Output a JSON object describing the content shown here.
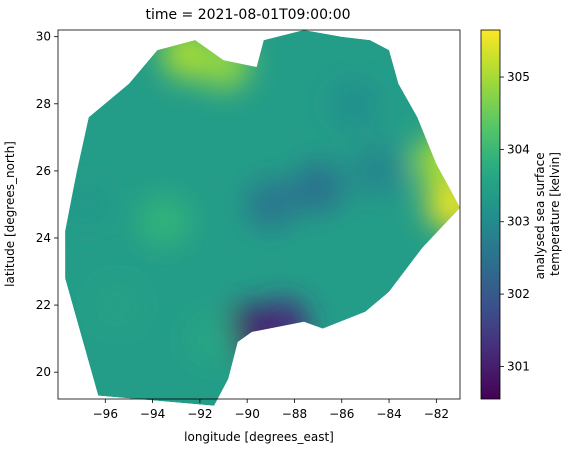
{
  "chart_data": {
    "type": "heatmap",
    "title": "time = 2021-08-01T09:00:00",
    "xlabel": "longitude [degrees_east]",
    "ylabel": "latitude [degrees_north]",
    "xlim": [
      -98,
      -81
    ],
    "ylim": [
      19.2,
      30.2
    ],
    "x_ticks": [
      -96,
      -94,
      -92,
      -90,
      -88,
      -86,
      -84,
      -82
    ],
    "x_tick_labels": [
      "−96",
      "−94",
      "−92",
      "−90",
      "−88",
      "−86",
      "−84",
      "−82"
    ],
    "y_ticks": [
      20,
      22,
      24,
      26,
      28,
      30
    ],
    "y_tick_labels": [
      "20",
      "22",
      "24",
      "26",
      "28",
      "30"
    ],
    "colorbar": {
      "label_lines": [
        "analysed sea surface",
        "temperature [kelvin]"
      ],
      "vmin": 300.55,
      "vmax": 305.65,
      "ticks": [
        301,
        302,
        303,
        304,
        305
      ],
      "tick_labels": [
        "301",
        "302",
        "303",
        "304",
        "305"
      ],
      "colormap": "viridis"
    },
    "domain_outline_lonlat": [
      [
        -97.7,
        22.8
      ],
      [
        -97.7,
        24.2
      ],
      [
        -97.2,
        26.0
      ],
      [
        -96.7,
        27.6
      ],
      [
        -95.0,
        28.6
      ],
      [
        -93.8,
        29.6
      ],
      [
        -92.2,
        29.9
      ],
      [
        -91.0,
        29.3
      ],
      [
        -89.6,
        29.1
      ],
      [
        -89.3,
        29.9
      ],
      [
        -87.6,
        30.2
      ],
      [
        -86.0,
        30.0
      ],
      [
        -84.8,
        29.9
      ],
      [
        -84.0,
        29.6
      ],
      [
        -83.6,
        28.6
      ],
      [
        -82.8,
        27.6
      ],
      [
        -82.0,
        26.2
      ],
      [
        -81.3,
        25.3
      ],
      [
        -81.0,
        24.9
      ],
      [
        -82.6,
        23.7
      ],
      [
        -84.0,
        22.4
      ],
      [
        -85.0,
        21.8
      ],
      [
        -86.8,
        21.3
      ],
      [
        -87.6,
        21.5
      ],
      [
        -89.8,
        21.2
      ],
      [
        -90.4,
        20.9
      ],
      [
        -90.8,
        19.8
      ],
      [
        -91.4,
        19.0
      ],
      [
        -96.3,
        19.3
      ]
    ],
    "sst_features": [
      {
        "lon": -90.0,
        "lat": 21.2,
        "value": 300.8
      },
      {
        "lon": -88.5,
        "lat": 21.4,
        "value": 301.2
      },
      {
        "lon": -89.0,
        "lat": 25.0,
        "value": 302.6
      },
      {
        "lon": -87.0,
        "lat": 25.5,
        "value": 302.5
      },
      {
        "lon": -84.5,
        "lat": 26.0,
        "value": 302.9
      },
      {
        "lon": -92.5,
        "lat": 29.5,
        "value": 305.0
      },
      {
        "lon": -91.0,
        "lat": 29.2,
        "value": 304.8
      },
      {
        "lon": -81.3,
        "lat": 25.0,
        "value": 305.5
      },
      {
        "lon": -81.8,
        "lat": 26.3,
        "value": 305.0
      },
      {
        "lon": -93.5,
        "lat": 24.5,
        "value": 303.9
      },
      {
        "lon": -95.5,
        "lat": 22.0,
        "value": 303.5
      },
      {
        "lon": -96.8,
        "lat": 25.0,
        "value": 303.3
      },
      {
        "lon": -91.5,
        "lat": 21.0,
        "value": 303.6
      },
      {
        "lon": -85.5,
        "lat": 28.0,
        "value": 303.1
      }
    ]
  }
}
